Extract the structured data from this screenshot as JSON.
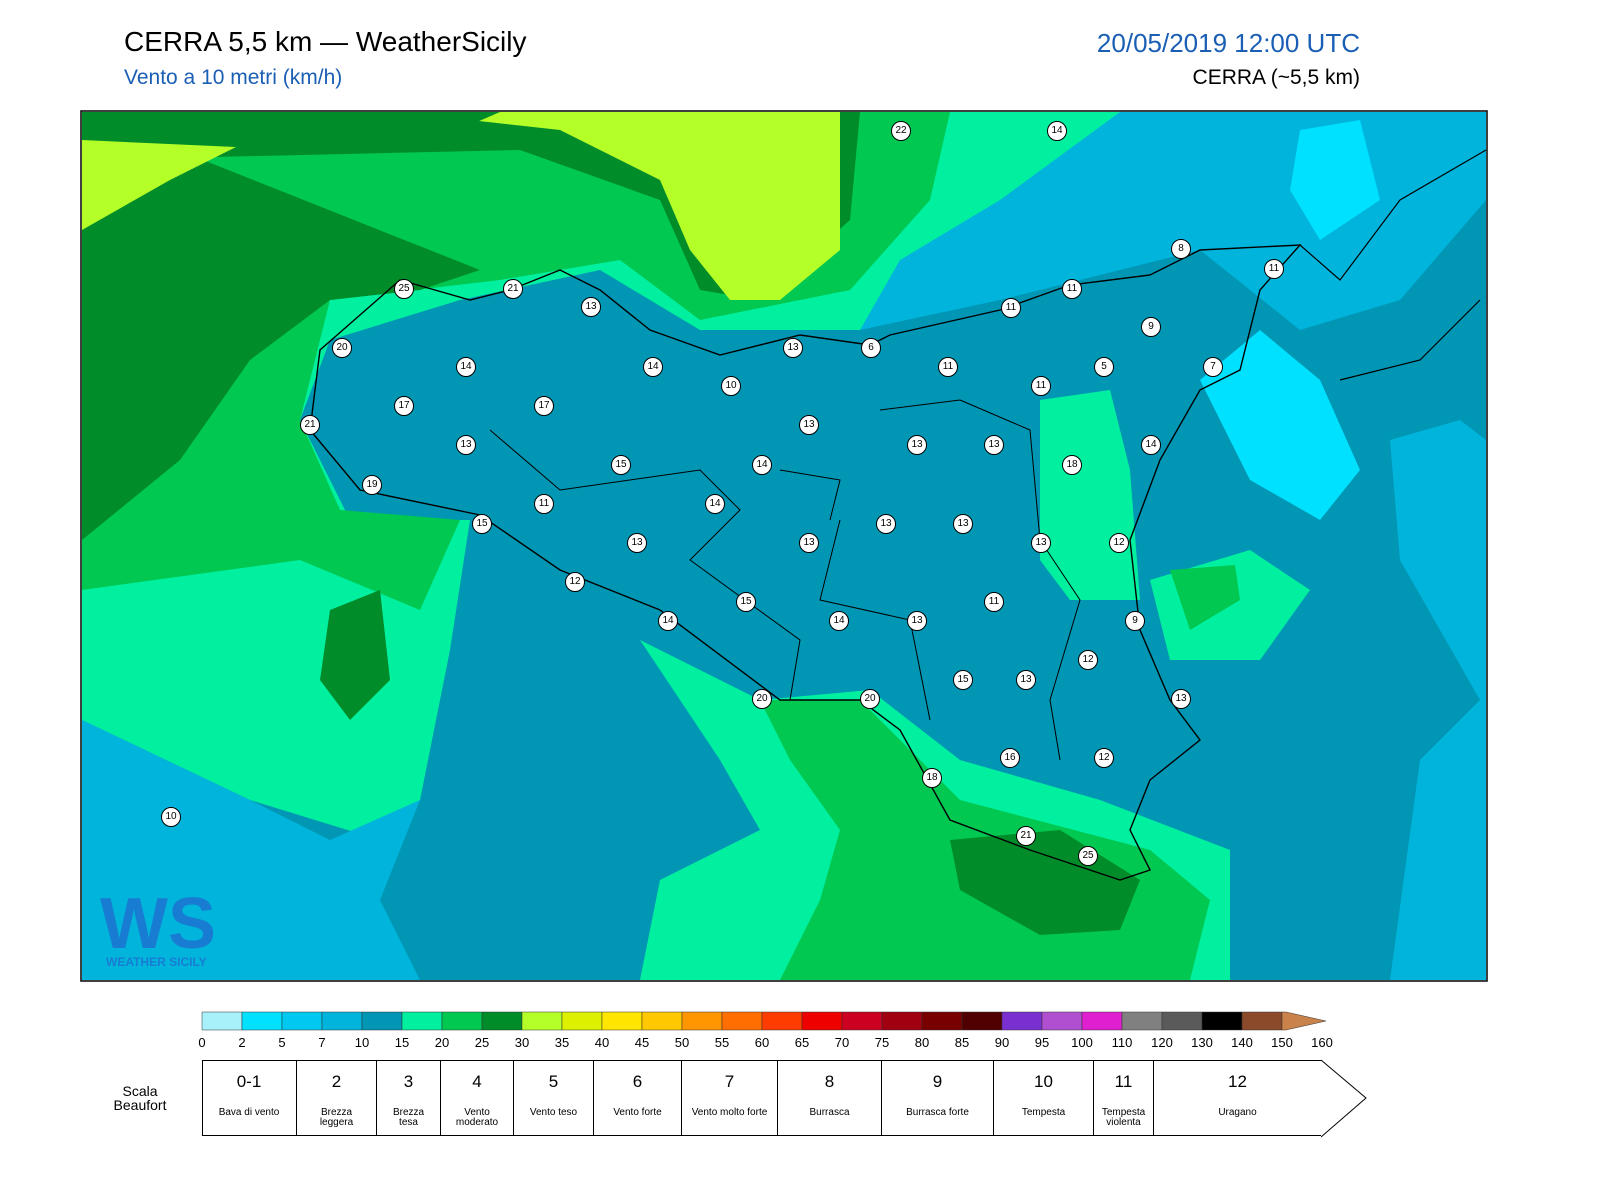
{
  "header": {
    "title": "CERRA 5,5 km — WeatherSicily",
    "subtitle": "Vento a 10 metri (km/h)",
    "date": "20/05/2019 12:00 UTC",
    "model": "CERRA (~5,5 km)"
  },
  "logo": {
    "mark": "WS",
    "name": "WEATHER SICILY"
  },
  "stations": [
    22,
    14,
    8,
    11,
    25,
    21,
    13,
    11,
    11,
    9,
    20,
    14,
    14,
    13,
    6,
    11,
    5,
    7,
    10,
    11,
    17,
    17,
    13,
    21,
    13,
    13,
    13,
    14,
    15,
    14,
    18,
    19,
    11,
    14,
    15,
    13,
    13,
    13,
    13,
    13,
    12,
    12,
    15,
    11,
    14,
    14,
    13,
    9,
    12,
    15,
    13,
    13,
    20,
    20,
    16,
    12,
    18,
    10,
    21,
    25
  ],
  "colorbar": {
    "ticks": [
      0,
      2,
      5,
      7,
      10,
      15,
      20,
      25,
      30,
      35,
      40,
      45,
      50,
      55,
      60,
      65,
      70,
      75,
      80,
      85,
      90,
      95,
      100,
      110,
      120,
      130,
      140,
      150,
      160
    ],
    "colors": [
      "#a8f0fa",
      "#00e0ff",
      "#00c8f0",
      "#00b4dc",
      "#0096b4",
      "#00f0a0",
      "#00c850",
      "#008c28",
      "#b4ff28",
      "#dcf000",
      "#ffe600",
      "#ffc800",
      "#ff9600",
      "#ff6e00",
      "#ff3c00",
      "#ee0000",
      "#cc0020",
      "#a00010",
      "#780000",
      "#500000",
      "#7a30d0",
      "#b050d0",
      "#e020d0",
      "#808080",
      "#5a5a5a",
      "#000000",
      "#8b4a2a",
      "#c8824a"
    ]
  },
  "beaufort": {
    "label": "Scala Beaufort",
    "levels": [
      {
        "force": "0-1",
        "name": "Bava di vento"
      },
      {
        "force": "2",
        "name": "Brezza leggera"
      },
      {
        "force": "3",
        "name": "Brezza tesa"
      },
      {
        "force": "4",
        "name": "Vento moderato"
      },
      {
        "force": "5",
        "name": "Vento teso"
      },
      {
        "force": "6",
        "name": "Vento forte"
      },
      {
        "force": "7",
        "name": "Vento molto forte"
      },
      {
        "force": "8",
        "name": "Burrasca"
      },
      {
        "force": "9",
        "name": "Burrasca forte"
      },
      {
        "force": "10",
        "name": "Tempesta"
      },
      {
        "force": "11",
        "name": "Tempesta violenta"
      },
      {
        "force": "12",
        "name": "Uragano"
      }
    ]
  }
}
